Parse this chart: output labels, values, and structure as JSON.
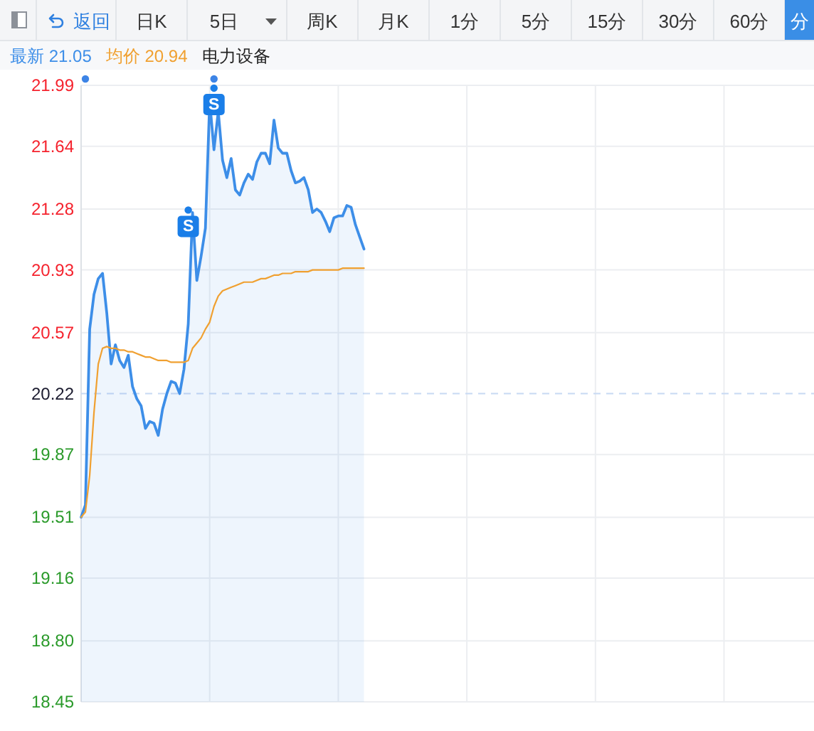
{
  "chart_data": {
    "type": "line",
    "subtitle": "电力设备",
    "annotations": [
      "返回",
      "日K",
      "5日",
      "周K",
      "月K",
      "1分",
      "5分",
      "15分",
      "30分",
      "60分",
      "分"
    ],
    "categories": [
      null,
      null,
      null,
      null,
      null,
      null,
      null,
      null,
      null,
      null,
      null,
      null,
      null,
      null,
      null,
      null,
      null,
      null,
      null,
      null,
      null,
      null,
      null,
      null,
      null,
      null,
      null,
      null,
      null,
      null,
      null,
      null,
      null,
      null,
      null,
      null,
      null,
      null,
      null,
      null,
      null,
      null,
      null,
      null,
      null,
      null,
      null,
      null,
      null,
      null,
      null,
      null,
      null,
      null,
      null,
      null,
      null,
      null,
      null,
      null,
      null,
      null,
      null,
      null,
      null,
      null,
      null,
      null,
      null,
      null,
      null,
      null,
      null,
      null,
      null,
      null,
      null,
      null,
      null,
      null,
      null,
      null,
      null,
      null,
      null,
      null,
      null,
      null,
      null,
      null,
      null,
      null,
      null,
      null,
      null,
      null,
      null,
      null,
      null,
      null,
      null,
      null,
      null,
      null,
      null,
      null,
      null,
      null,
      null,
      null,
      null,
      null,
      null,
      null,
      null,
      null,
      null,
      null,
      null,
      null,
      null,
      null,
      null,
      null,
      null,
      null,
      null,
      null,
      null,
      null,
      null,
      null,
      null,
      null,
      null,
      null,
      null,
      null,
      null,
      null,
      null,
      null,
      null,
      null,
      null,
      null,
      null,
      null,
      null,
      null,
      null,
      null,
      null,
      null,
      null,
      null,
      null,
      null,
      null,
      null,
      null,
      null,
      null,
      null,
      null,
      null,
      null,
      null,
      null,
      null,
      null,
      null
    ],
    "series": [
      {
        "name": "最新 21.05",
        "type": "area",
        "color": "#3d8ee8",
        "values": [
          19.51,
          19.58,
          20.59,
          20.79,
          20.88,
          20.91,
          20.68,
          20.39,
          20.5,
          20.41,
          20.37,
          20.44,
          20.26,
          20.19,
          20.15,
          20.02,
          20.06,
          20.05,
          19.98,
          20.13,
          20.22,
          20.29,
          20.28,
          20.22,
          20.36,
          20.62,
          21.26,
          20.87,
          21.01,
          21.17,
          21.9,
          21.62,
          21.84,
          21.56,
          21.46,
          21.57,
          21.39,
          21.36,
          21.43,
          21.48,
          21.45,
          21.55,
          21.6,
          21.6,
          21.54,
          21.79,
          21.63,
          21.6,
          21.6,
          21.5,
          21.43,
          21.44,
          21.46,
          21.39,
          21.26,
          21.28,
          21.26,
          21.21,
          21.15,
          21.23,
          21.24,
          21.24,
          21.3,
          21.29,
          21.19,
          21.12,
          21.05,
          null,
          null,
          null,
          null,
          null,
          null,
          null,
          null,
          null,
          null,
          null,
          null,
          null,
          null,
          null,
          null,
          null,
          null,
          null,
          null,
          null,
          null,
          null,
          null,
          null,
          null,
          null,
          null,
          null,
          null,
          null,
          null,
          null,
          null,
          null,
          null,
          null,
          null,
          null,
          null,
          null,
          null,
          null,
          null,
          null,
          null,
          null,
          null,
          null,
          null,
          null,
          null,
          null,
          null,
          null,
          null,
          null,
          null,
          null,
          null,
          null,
          null,
          null,
          null,
          null,
          null,
          null,
          null,
          null,
          null,
          null,
          null,
          null,
          null,
          null,
          null,
          null,
          null,
          null,
          null,
          null,
          null,
          null,
          null,
          null,
          null,
          null,
          null,
          null,
          null,
          null,
          null,
          null,
          null,
          null,
          null,
          null,
          null,
          null,
          null,
          null,
          null,
          null,
          null,
          null
        ]
      },
      {
        "name": "均价 20.94",
        "color": "#f0a030",
        "values": [
          19.51,
          19.54,
          19.75,
          20.11,
          20.39,
          20.48,
          20.49,
          20.48,
          20.48,
          20.47,
          20.47,
          20.46,
          20.46,
          20.45,
          20.44,
          20.43,
          20.43,
          20.42,
          20.41,
          20.41,
          20.41,
          20.4,
          20.4,
          20.4,
          20.4,
          20.41,
          20.48,
          20.51,
          20.54,
          20.59,
          20.63,
          20.72,
          20.78,
          20.81,
          20.82,
          20.83,
          20.84,
          20.85,
          20.86,
          20.86,
          20.86,
          20.87,
          20.88,
          20.88,
          20.89,
          20.9,
          20.9,
          20.91,
          20.91,
          20.91,
          20.92,
          20.92,
          20.92,
          20.92,
          20.93,
          20.93,
          20.93,
          20.93,
          20.93,
          20.93,
          20.93,
          20.94,
          20.94,
          20.94,
          20.94,
          20.94,
          20.94,
          null,
          null,
          null,
          null,
          null,
          null,
          null,
          null,
          null,
          null,
          null,
          null,
          null,
          null,
          null,
          null,
          null,
          null,
          null,
          null,
          null,
          null,
          null,
          null,
          null,
          null,
          null,
          null,
          null,
          null,
          null,
          null,
          null,
          null,
          null,
          null,
          null,
          null,
          null,
          null,
          null,
          null,
          null,
          null,
          null,
          null,
          null,
          null,
          null,
          null,
          null,
          null,
          null,
          null,
          null,
          null,
          null,
          null,
          null,
          null,
          null,
          null,
          null,
          null,
          null,
          null,
          null,
          null,
          null,
          null,
          null,
          null,
          null,
          null,
          null,
          null,
          null,
          null,
          null,
          null,
          null,
          null,
          null,
          null,
          null,
          null,
          null,
          null,
          null,
          null,
          null,
          null,
          null,
          null,
          null,
          null,
          null,
          null,
          null,
          null,
          null,
          null,
          null,
          null,
          null
        ]
      },
      {
        "type": "scatter",
        "marker": "square",
        "color": "#1a7ee8",
        "values": [
          null,
          null,
          null,
          null,
          null,
          null,
          null,
          null,
          null,
          null,
          null,
          null,
          null,
          null,
          null,
          null,
          null,
          null,
          null,
          null,
          null,
          null,
          null,
          null,
          null,
          21.18,
          null,
          null,
          null,
          null,
          null,
          21.88,
          null,
          null,
          null,
          null,
          null,
          null,
          null,
          null,
          null,
          null,
          null,
          null,
          null,
          null,
          null,
          null,
          null,
          null,
          null,
          null,
          null,
          null,
          null,
          null,
          null,
          null,
          null,
          null,
          null,
          null,
          null,
          null,
          null,
          null,
          null,
          null,
          null,
          null,
          null,
          null,
          null,
          null,
          null,
          null,
          null,
          null,
          null,
          null,
          null,
          null,
          null,
          null,
          null,
          null,
          null,
          null,
          null,
          null,
          null,
          null,
          null,
          null,
          null,
          null,
          null,
          null,
          null,
          null,
          null,
          null,
          null,
          null,
          null,
          null,
          null,
          null,
          null,
          null,
          null,
          null,
          null,
          null,
          null,
          null,
          null,
          null,
          null,
          null,
          null,
          null,
          null,
          null,
          null,
          null,
          null,
          null,
          null,
          null,
          null,
          null,
          null,
          null,
          null,
          null,
          null,
          null,
          null,
          null,
          null,
          null,
          null,
          null,
          null,
          null,
          null,
          null,
          null,
          null,
          null,
          null,
          null,
          null,
          null,
          null,
          null,
          null,
          null,
          null,
          null,
          null,
          null,
          null,
          null,
          null,
          null,
          null,
          null,
          null,
          null,
          null
        ],
        "value_labels": [
          null,
          null,
          null,
          null,
          null,
          null,
          null,
          null,
          null,
          null,
          null,
          null,
          null,
          null,
          null,
          null,
          null,
          null,
          null,
          null,
          null,
          null,
          null,
          null,
          null,
          "S",
          null,
          null,
          null,
          null,
          null,
          "S",
          null,
          null,
          null,
          null,
          null,
          null,
          null,
          null,
          null,
          null,
          null,
          null,
          null,
          null,
          null,
          null,
          null,
          null,
          null,
          null,
          null,
          null,
          null,
          null,
          null,
          null,
          null,
          null,
          null,
          null,
          null,
          null,
          null,
          null,
          null,
          null,
          null,
          null,
          null,
          null,
          null,
          null,
          null,
          null,
          null,
          null,
          null,
          null,
          null,
          null,
          null,
          null,
          null,
          null,
          null,
          null,
          null,
          null,
          null,
          null,
          null,
          null,
          null,
          null,
          null,
          null,
          null,
          null,
          null,
          null,
          null,
          null,
          null,
          null,
          null,
          null,
          null,
          null,
          null,
          null,
          null,
          null,
          null,
          null,
          null,
          null,
          null,
          null,
          null,
          null,
          null,
          null,
          null,
          null,
          null,
          null,
          null,
          null,
          null,
          null,
          null,
          null,
          null,
          null,
          null,
          null,
          null,
          null,
          null,
          null,
          null,
          null,
          null,
          null,
          null,
          null,
          null,
          null,
          null,
          null,
          null,
          null,
          null,
          null,
          null,
          null,
          null,
          null,
          null,
          null,
          null,
          null,
          null,
          null,
          null,
          null,
          null,
          null,
          null,
          null
        ]
      }
    ],
    "ylim": [
      18.45,
      21.99
    ],
    "yticks": [
      21.99,
      21.64,
      21.28,
      20.93,
      20.57,
      20.22,
      19.87,
      19.51,
      19.16,
      {
        "value": 18.8,
        "label": "18.80"
      },
      18.45
    ],
    "tick_labels": "y",
    "grid": true,
    "legend": "top left",
    "ref_lines": [
      {
        "axis": "y",
        "value": 20.22,
        "color": "#c8d9f3",
        "line_style": "dashed"
      }
    ]
  }
}
